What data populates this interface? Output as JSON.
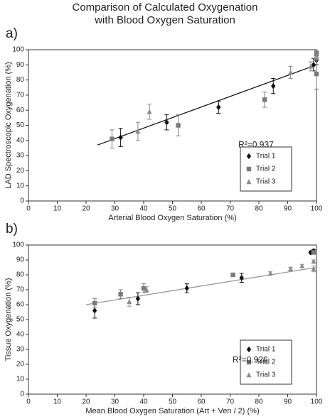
{
  "title": "Comparison of Calculated Oxygenation with Blood Oxygen Saturation",
  "chart_data": [
    {
      "type": "scatter",
      "panel": "a)",
      "xlabel": "Arterial Blood Oxygen Saturation (%)",
      "ylabel": "LAD Spectroscopic Oxygenation (%)",
      "xlim": [
        0,
        100
      ],
      "xticks": [
        0,
        10,
        20,
        30,
        40,
        50,
        60,
        70,
        80,
        90,
        100
      ],
      "ylim": [
        0,
        100
      ],
      "yticks": [
        0,
        10,
        20,
        30,
        40,
        50,
        60,
        70,
        80,
        90,
        100
      ],
      "grid": false,
      "legend": "lower right",
      "annotation": "R²=0.937",
      "trendline": {
        "x": [
          24,
          100
        ],
        "values": [
          37,
          90
        ],
        "color": "#111111"
      },
      "series": [
        {
          "name": "Trial 1",
          "color": "#111111",
          "marker": "diamond",
          "x": [
            32,
            48,
            66,
            85,
            99,
            100
          ],
          "values": [
            42,
            52,
            62,
            76,
            90,
            93
          ],
          "errors": [
            6,
            5,
            4,
            5,
            4,
            3
          ]
        },
        {
          "name": "Trial 2",
          "color": "#7a7a7a",
          "marker": "square",
          "x": [
            29,
            52,
            82,
            100,
            100,
            100
          ],
          "values": [
            41,
            50,
            67,
            84,
            97,
            98
          ],
          "errors": [
            6,
            7,
            5,
            10,
            2,
            1
          ]
        },
        {
          "name": "Trial 3",
          "color": "#8c8c8c",
          "marker": "triangle",
          "x": [
            38,
            42,
            91,
            98,
            100
          ],
          "values": [
            46,
            59,
            85,
            89,
            95
          ],
          "errors": [
            6,
            5,
            4,
            3,
            2
          ]
        }
      ]
    },
    {
      "type": "scatter",
      "panel": "b)",
      "xlabel": "Mean Blood Oxygen Saturation (Art + Ven / 2) (%)",
      "ylabel": "Tissue Oxygenation (%)",
      "xlim": [
        0,
        100
      ],
      "xticks": [
        0,
        10,
        20,
        30,
        40,
        50,
        60,
        70,
        80,
        90,
        100
      ],
      "ylim": [
        0,
        100
      ],
      "yticks": [
        0,
        10,
        20,
        30,
        40,
        50,
        60,
        70,
        80,
        90,
        100
      ],
      "grid": false,
      "legend": "lower right",
      "annotation": "R²=0.926",
      "trendline": {
        "x": [
          20,
          100
        ],
        "values": [
          60,
          85
        ],
        "color": "#999999"
      },
      "series": [
        {
          "name": "Trial 1",
          "color": "#111111",
          "marker": "diamond",
          "x": [
            23,
            38,
            55,
            74,
            98,
            99
          ],
          "values": [
            56,
            64,
            71,
            78,
            95,
            96
          ],
          "errors": [
            5,
            4,
            3,
            3,
            1,
            1
          ]
        },
        {
          "name": "Trial 2",
          "color": "#7a7a7a",
          "marker": "square",
          "x": [
            23,
            32,
            40,
            71,
            99
          ],
          "values": [
            61,
            67,
            71,
            80,
            95
          ],
          "errors": [
            3,
            3,
            3,
            1,
            1
          ]
        },
        {
          "name": "Trial 3",
          "color": "#8c8c8c",
          "marker": "triangle",
          "x": [
            35,
            41,
            84,
            91,
            95,
            99,
            99
          ],
          "values": [
            62,
            70,
            81,
            84,
            86,
            84,
            89
          ],
          "errors": [
            3,
            2,
            1,
            1,
            1,
            2,
            1
          ]
        }
      ]
    }
  ]
}
